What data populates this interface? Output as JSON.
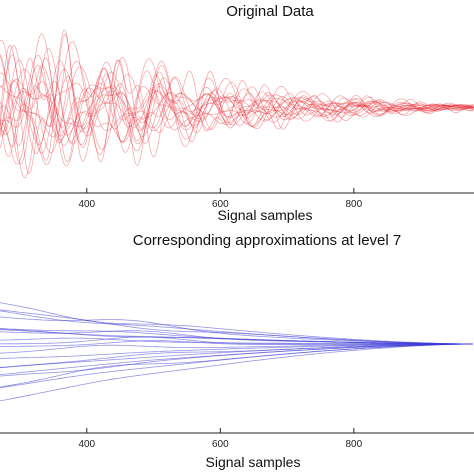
{
  "chart_data": [
    {
      "type": "line",
      "title": "Original Data",
      "xlabel": "Signal samples",
      "ylabel": "",
      "xlim": [
        270,
        980
      ],
      "ylim": [
        -1,
        1
      ],
      "xticks": [
        400,
        600,
        800
      ],
      "line_color": "#e8323c",
      "n_series": 20,
      "envelope": {
        "x": [
          270,
          330,
          400,
          500,
          600,
          700,
          800,
          900,
          980
        ],
        "amplitude": [
          0.92,
          0.95,
          0.88,
          0.62,
          0.4,
          0.26,
          0.16,
          0.09,
          0.05
        ]
      },
      "grid": false,
      "legend": "none"
    },
    {
      "type": "line",
      "title": "Corresponding approximations at level 7",
      "xlabel": "Signal samples",
      "ylabel": "",
      "xlim": [
        270,
        980
      ],
      "ylim": [
        -1,
        1
      ],
      "xticks": [
        400,
        600,
        800
      ],
      "line_color": "#3a3ad6",
      "n_series": 20,
      "converge_x": 980,
      "converge_y": 0.0,
      "grid": false,
      "legend": "none"
    }
  ]
}
